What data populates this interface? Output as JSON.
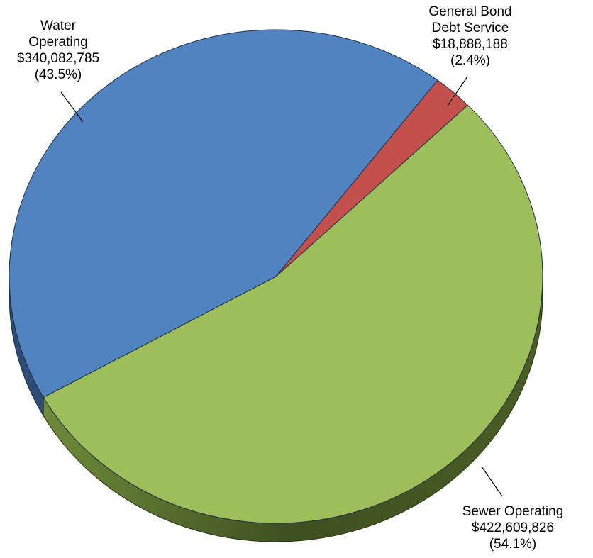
{
  "chart_data": {
    "type": "pie",
    "style": "3d-tilted",
    "slices": [
      {
        "name": "Sewer Operating",
        "value": 422609826,
        "percent": 54.1,
        "value_label": "$422,609,826",
        "percent_label": "(54.1%)",
        "color": "#9BBB59",
        "side_color": "#4F6228"
      },
      {
        "name": "Water Operating",
        "value": 340082785,
        "percent": 43.5,
        "value_label": "$340,082,785",
        "percent_label": "(43.5%)",
        "color": "#4F81BD",
        "side_color": "#2C4D75"
      },
      {
        "name": "General Bond Debt Service",
        "value": 18888188,
        "percent": 2.4,
        "value_label": "$18,888,188",
        "percent_label": "(2.4%)",
        "color": "#C0504D",
        "side_color": "#7F2A28"
      }
    ],
    "labels": {
      "water": {
        "line1": "Water",
        "line2": "Operating",
        "line3": "$340,082,785",
        "line4": "(43.5%)"
      },
      "bond": {
        "line1": "General Bond",
        "line2": "Debt Service",
        "line3": "$18,888,188",
        "line4": "(2.4%)"
      },
      "sewer": {
        "line1": "Sewer Operating",
        "line2": "$422,609,826",
        "line3": "(54.1%)"
      }
    }
  }
}
